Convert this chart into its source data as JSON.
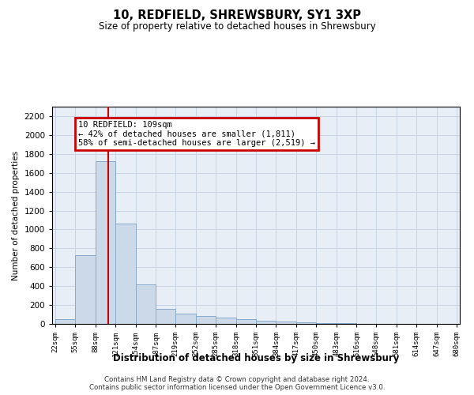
{
  "title": "10, REDFIELD, SHREWSBURY, SY1 3XP",
  "subtitle": "Size of property relative to detached houses in Shrewsbury",
  "xlabel": "Distribution of detached houses by size in Shrewsbury",
  "ylabel": "Number of detached properties",
  "footer_line1": "Contains HM Land Registry data © Crown copyright and database right 2024.",
  "footer_line2": "Contains public sector information licensed under the Open Government Licence v3.0.",
  "bar_color": "#ccd9e8",
  "bar_edge_color": "#88aac8",
  "grid_color": "#c8d4e4",
  "background_color": "#e8eef6",
  "annotation_text": "10 REDFIELD: 109sqm\n← 42% of detached houses are smaller (1,811)\n58% of semi-detached houses are larger (2,519) →",
  "annotation_box_color": "#cc0000",
  "vline_x": 109,
  "vline_color": "#cc0000",
  "bin_edges": [
    22,
    55,
    88,
    121,
    154,
    187,
    219,
    252,
    285,
    318,
    351,
    384,
    417,
    450,
    483,
    516,
    548,
    581,
    614,
    647,
    680
  ],
  "bar_heights": [
    50,
    730,
    1720,
    1060,
    420,
    155,
    105,
    80,
    65,
    50,
    35,
    25,
    15,
    10,
    6,
    4,
    3,
    2,
    1,
    1
  ],
  "ylim": [
    0,
    2300
  ],
  "yticks": [
    0,
    200,
    400,
    600,
    800,
    1000,
    1200,
    1400,
    1600,
    1800,
    2000,
    2200
  ],
  "xtick_labels": [
    "22sqm",
    "55sqm",
    "88sqm",
    "121sqm",
    "154sqm",
    "187sqm",
    "219sqm",
    "252sqm",
    "285sqm",
    "318sqm",
    "351sqm",
    "384sqm",
    "417sqm",
    "450sqm",
    "483sqm",
    "516sqm",
    "548sqm",
    "581sqm",
    "614sqm",
    "647sqm",
    "680sqm"
  ]
}
